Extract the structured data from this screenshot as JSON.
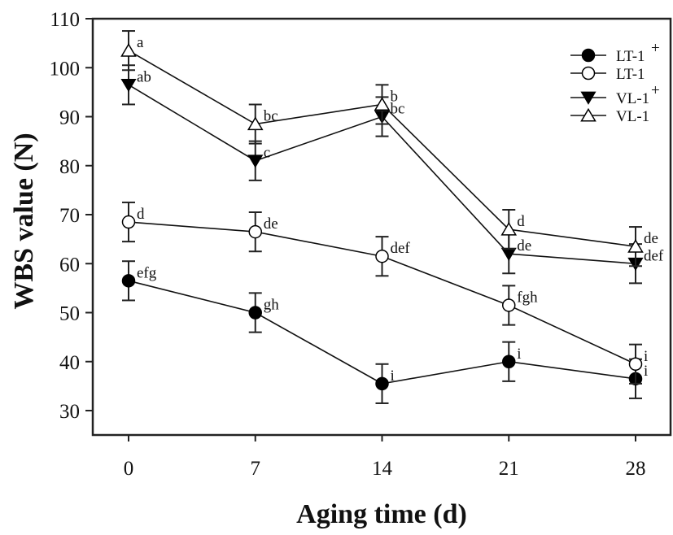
{
  "chart_data": {
    "type": "line",
    "title": "",
    "xlabel": "Aging time (d)",
    "ylabel": "WBS value (N)",
    "x": [
      0,
      7,
      14,
      21,
      28
    ],
    "xticks": [
      "0",
      "7",
      "14",
      "21",
      "28"
    ],
    "yticks": [
      "30",
      "40",
      "50",
      "60",
      "70",
      "80",
      "90",
      "100",
      "110"
    ],
    "xlim": [
      -3,
      32
    ],
    "ylim": [
      30,
      110
    ],
    "grid": false,
    "legend_position": "top-right",
    "series": [
      {
        "name": "LT-1",
        "superscript": "+",
        "marker": "filled-circle",
        "values": [
          56.5,
          50,
          35.5,
          40,
          36.5
        ],
        "errors": [
          4,
          4,
          4,
          4,
          4
        ],
        "letters": [
          "efg",
          "gh",
          "i",
          "i",
          "i"
        ]
      },
      {
        "name": "LT-1",
        "superscript": "",
        "marker": "open-circle",
        "values": [
          68.5,
          66.5,
          61.5,
          51.5,
          39.5
        ],
        "errors": [
          4,
          4,
          4,
          4,
          4
        ],
        "letters": [
          "d",
          "de",
          "def",
          "fgh",
          "i"
        ]
      },
      {
        "name": "VL-1",
        "superscript": "+",
        "marker": "filled-triangle-down",
        "values": [
          96.5,
          81,
          90,
          62,
          60
        ],
        "errors": [
          4,
          4,
          4,
          4,
          4
        ],
        "letters": [
          "ab",
          "c",
          "bc",
          "de",
          "def"
        ]
      },
      {
        "name": "VL-1",
        "superscript": "",
        "marker": "open-triangle-up",
        "values": [
          103.5,
          88.5,
          92.5,
          67,
          63.5
        ],
        "errors": [
          4,
          4,
          4,
          4,
          4
        ],
        "letters": [
          "a",
          "bc",
          "b",
          "d",
          "de"
        ]
      }
    ]
  }
}
